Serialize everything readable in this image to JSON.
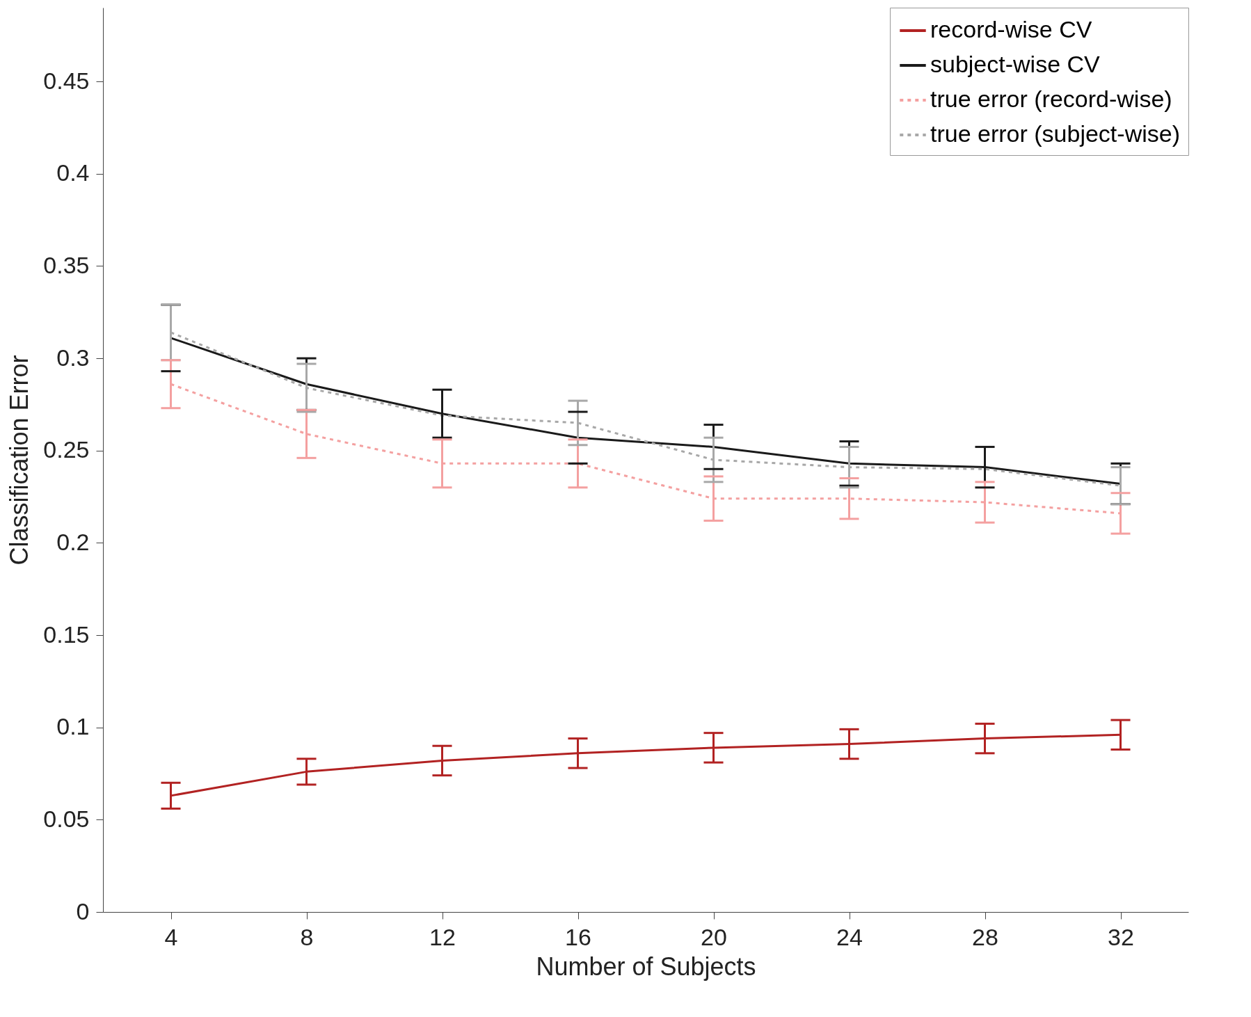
{
  "chart_data": {
    "type": "line",
    "xlabel": "Number of Subjects",
    "ylabel": "Classification Error",
    "x": [
      4,
      8,
      12,
      16,
      20,
      24,
      28,
      32
    ],
    "xlim": [
      2,
      34
    ],
    "xticks": [
      4,
      8,
      12,
      16,
      20,
      24,
      28,
      32
    ],
    "ylim": [
      0,
      0.49
    ],
    "yticks": [
      0,
      0.05,
      0.1,
      0.15,
      0.2,
      0.25,
      0.3,
      0.35,
      0.4,
      0.45
    ],
    "grid": false,
    "legend": "top right",
    "marker": "none",
    "series": [
      {
        "name": "record-wise CV",
        "color": "#b22222",
        "line_style": "solid",
        "values": [
          0.063,
          0.076,
          0.082,
          0.086,
          0.089,
          0.091,
          0.094,
          0.096
        ],
        "errors": [
          0.007,
          0.007,
          0.008,
          0.008,
          0.008,
          0.008,
          0.008,
          0.008
        ]
      },
      {
        "name": "subject-wise CV",
        "color": "#1a1a1a",
        "line_style": "solid",
        "values": [
          0.311,
          0.286,
          0.27,
          0.257,
          0.252,
          0.243,
          0.241,
          0.232
        ],
        "errors": [
          0.018,
          0.014,
          0.013,
          0.014,
          0.012,
          0.012,
          0.011,
          0.011
        ]
      },
      {
        "name": "true error (record-wise)",
        "color": "#f4a0a0",
        "line_style": "dotted",
        "values": [
          0.286,
          0.259,
          0.243,
          0.243,
          0.224,
          0.224,
          0.222,
          0.216
        ],
        "errors": [
          0.013,
          0.013,
          0.013,
          0.013,
          0.012,
          0.011,
          0.011,
          0.011
        ]
      },
      {
        "name": "true error (subject-wise)",
        "color": "#a8a8a8",
        "line_style": "dotted",
        "values": [
          0.314,
          0.284,
          0.269,
          0.265,
          0.245,
          0.241,
          0.24,
          0.231
        ],
        "errors": [
          0.015,
          0.013,
          null,
          0.012,
          0.012,
          0.011,
          null,
          0.01
        ]
      }
    ]
  }
}
